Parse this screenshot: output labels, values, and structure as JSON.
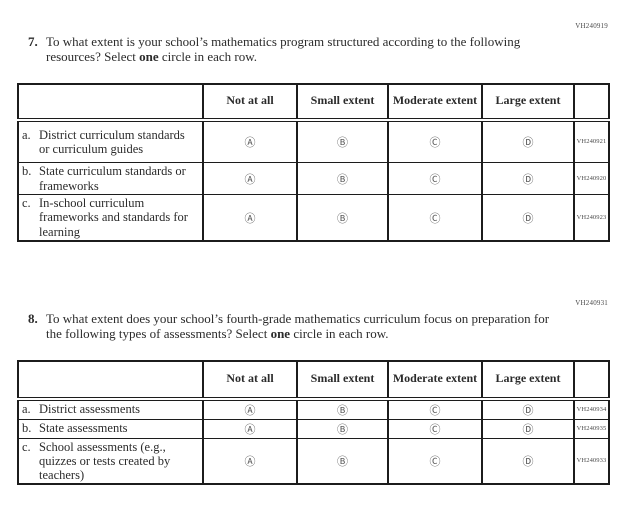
{
  "options_header": [
    "Not at all",
    "Small extent",
    "Moderate extent",
    "Large extent"
  ],
  "glyphs": {
    "a": "Ⓐ",
    "b": "Ⓑ",
    "c": "Ⓒ",
    "d": "Ⓓ"
  },
  "colors": {
    "border": "#1c1c1c",
    "text": "#2b2b2b",
    "code_text": "#4a4a4a"
  },
  "questions": [
    {
      "code": "VH240919",
      "number": "7.",
      "text1": "To what extent is your school’s mathematics program structured according to the following resources? Select ",
      "bold": "one",
      "text2": " circle in each row.",
      "rows": [
        {
          "letter": "a.",
          "label": "District curriculum standards or curriculum guides",
          "code": "VH240921"
        },
        {
          "letter": "b.",
          "label": "State curriculum standards or frameworks",
          "code": "VH240920"
        },
        {
          "letter": "c.",
          "label": "In-school curriculum frameworks and standards for learning",
          "code": "VH240923"
        }
      ]
    },
    {
      "code": "VH240931",
      "number": "8.",
      "text1": "To what extent does your school’s fourth-grade mathematics curriculum focus on preparation for the following types of assessments? Select ",
      "bold": "one",
      "text2": " circle in each row.",
      "rows": [
        {
          "letter": "a.",
          "label": "District assessments",
          "code": "VH240934"
        },
        {
          "letter": "b.",
          "label": "State assessments",
          "code": "VH240935"
        },
        {
          "letter": "c.",
          "label": "School assessments (e.g., quizzes or tests created by teachers)",
          "code": "VH240933"
        }
      ]
    }
  ]
}
